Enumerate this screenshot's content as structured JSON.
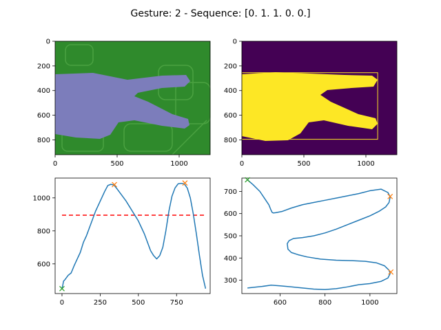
{
  "figure": {
    "title": "Gesture: 2 -   Sequence: [0. 1. 1. 0. 0.]"
  },
  "colors": {
    "line": "#1f77b4",
    "peak_marker": "#ff7f0e",
    "start_marker": "#2ca02c",
    "threshold": "#ff0000",
    "mask_bg": "#440154",
    "mask_fg": "#fde725",
    "photo_bg": "#2f8a2c",
    "hand": "#7c7dbb"
  },
  "chart_data": [
    {
      "type": "image",
      "panel": "top-left",
      "description_visible": "",
      "xlim": [
        0,
        1250
      ],
      "ylim": [
        920,
        0
      ],
      "xticks": [
        0,
        500,
        1000
      ],
      "yticks": [
        0,
        200,
        400,
        600,
        800
      ]
    },
    {
      "type": "image",
      "panel": "top-right",
      "xlim": [
        0,
        1250
      ],
      "ylim": [
        920,
        0
      ],
      "xticks": [
        0,
        500,
        1000
      ],
      "yticks": [
        0,
        200,
        400,
        600,
        800
      ],
      "bbox_rect_data": [
        0,
        255,
        1095,
        795
      ]
    },
    {
      "type": "line",
      "panel": "bottom-left",
      "xlim": [
        -45,
        970
      ],
      "ylim": [
        420,
        1120
      ],
      "xticks": [
        0,
        250,
        500,
        750
      ],
      "yticks": [
        600,
        800,
        1000
      ],
      "threshold_y": 895,
      "threshold_x": [
        0,
        940
      ],
      "series": [
        {
          "x": [
            0,
            5,
            10,
            20,
            40,
            60,
            80,
            100,
            120,
            140,
            160,
            180,
            200,
            220,
            240,
            260,
            280,
            300,
            320,
            340,
            360,
            380,
            400,
            420,
            440,
            460,
            480,
            500,
            520,
            540,
            560,
            580,
            600,
            620,
            640,
            660,
            680,
            700,
            720,
            740,
            760,
            780,
            800,
            820,
            840,
            860,
            880,
            900,
            920,
            940
          ],
          "values": [
            450,
            470,
            495,
            505,
            530,
            545,
            590,
            630,
            670,
            730,
            770,
            820,
            870,
            920,
            960,
            1000,
            1040,
            1075,
            1082,
            1078,
            1055,
            1030,
            1005,
            980,
            950,
            920,
            890,
            860,
            820,
            780,
            730,
            680,
            650,
            630,
            650,
            700,
            800,
            920,
            1010,
            1060,
            1085,
            1088,
            1085,
            1060,
            1000,
            900,
            780,
            650,
            530,
            450
          ]
        }
      ],
      "peaks": [
        [
          343,
          1080
        ],
        [
          805,
          1090
        ]
      ],
      "start": [
        0,
        450
      ]
    },
    {
      "type": "line",
      "panel": "bottom-right",
      "xlim": [
        430,
        1120
      ],
      "ylim": [
        240,
        760
      ],
      "xticks": [
        600,
        800,
        1000
      ],
      "yticks": [
        300,
        400,
        500,
        600,
        700
      ],
      "series": [
        {
          "x": [
            455,
            480,
            510,
            530,
            550,
            560,
            565,
            570,
            580,
            610,
            650,
            700,
            750,
            800,
            850,
            900,
            950,
            1000,
            1050,
            1080,
            1090,
            1085,
            1070,
            1040,
            1000,
            950,
            900,
            850,
            800,
            750,
            700,
            660,
            640,
            632,
            635,
            650,
            680,
            720,
            780,
            850,
            920,
            980,
            1030,
            1065,
            1085,
            1090,
            1080,
            1050,
            1000,
            950,
            900,
            850,
            800,
            750,
            700,
            650,
            600,
            560,
            520,
            480,
            455
          ],
          "values": [
            752,
            730,
            700,
            670,
            640,
            615,
            605,
            603,
            604,
            610,
            625,
            640,
            650,
            660,
            670,
            680,
            690,
            703,
            710,
            695,
            675,
            650,
            630,
            610,
            590,
            570,
            550,
            530,
            513,
            500,
            492,
            488,
            478,
            465,
            440,
            425,
            415,
            405,
            395,
            390,
            388,
            385,
            378,
            365,
            345,
            330,
            310,
            295,
            285,
            280,
            270,
            262,
            258,
            260,
            265,
            270,
            275,
            278,
            272,
            268,
            265
          ]
        }
      ],
      "peaks": [
        [
          1090,
          677
        ],
        [
          1093,
          337
        ]
      ],
      "start": [
        455,
        752
      ]
    }
  ]
}
